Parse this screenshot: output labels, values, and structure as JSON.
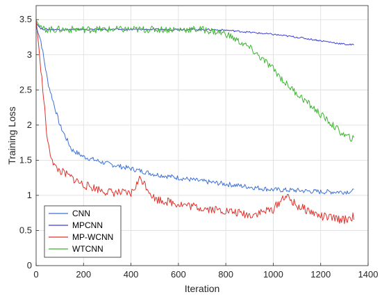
{
  "chart_data": {
    "type": "line",
    "title": "",
    "xlabel": "Iteration",
    "ylabel": "Training Loss",
    "xlim": [
      0,
      1400
    ],
    "ylim": [
      0,
      3.7
    ],
    "xticks": [
      0,
      200,
      400,
      600,
      800,
      1000,
      1200,
      1400
    ],
    "yticks": [
      0,
      0.5,
      1,
      1.5,
      2,
      2.5,
      3,
      3.5
    ],
    "grid": true,
    "legend_position": "bottom-left",
    "series": [
      {
        "name": "CNN",
        "color": "#3b6fd9",
        "x": [
          0,
          20,
          50,
          100,
          150,
          200,
          300,
          400,
          500,
          600,
          700,
          800,
          900,
          1000,
          1100,
          1200,
          1300,
          1340
        ],
        "y": [
          3.4,
          3.2,
          2.6,
          2.0,
          1.65,
          1.55,
          1.45,
          1.38,
          1.3,
          1.25,
          1.2,
          1.16,
          1.12,
          1.08,
          1.07,
          1.05,
          1.05,
          1.06
        ]
      },
      {
        "name": "MPCNN",
        "color": "#3c3cd6",
        "x": [
          0,
          20,
          50,
          100,
          200,
          400,
          600,
          700,
          800,
          900,
          1000,
          1100,
          1200,
          1300,
          1340
        ],
        "y": [
          3.45,
          3.37,
          3.36,
          3.36,
          3.36,
          3.36,
          3.36,
          3.36,
          3.35,
          3.32,
          3.29,
          3.25,
          3.2,
          3.15,
          3.14
        ]
      },
      {
        "name": "MP-WCNN",
        "color": "#e0302a",
        "x": [
          0,
          20,
          50,
          80,
          100,
          150,
          200,
          300,
          400,
          440,
          500,
          600,
          700,
          800,
          900,
          1000,
          1050,
          1100,
          1150,
          1200,
          1300,
          1340
        ],
        "y": [
          3.5,
          2.8,
          1.7,
          1.4,
          1.35,
          1.25,
          1.15,
          1.05,
          1.02,
          1.25,
          0.95,
          0.88,
          0.82,
          0.78,
          0.72,
          0.8,
          1.0,
          0.85,
          0.78,
          0.7,
          0.65,
          0.7
        ]
      },
      {
        "name": "WTCNN",
        "color": "#3cb52f",
        "x": [
          0,
          20,
          50,
          100,
          200,
          400,
          600,
          700,
          800,
          850,
          900,
          950,
          1000,
          1050,
          1100,
          1150,
          1200,
          1250,
          1300,
          1340
        ],
        "y": [
          3.5,
          3.37,
          3.36,
          3.36,
          3.36,
          3.36,
          3.36,
          3.36,
          3.3,
          3.2,
          3.1,
          2.95,
          2.8,
          2.6,
          2.45,
          2.3,
          2.15,
          2.0,
          1.85,
          1.8
        ]
      }
    ]
  }
}
